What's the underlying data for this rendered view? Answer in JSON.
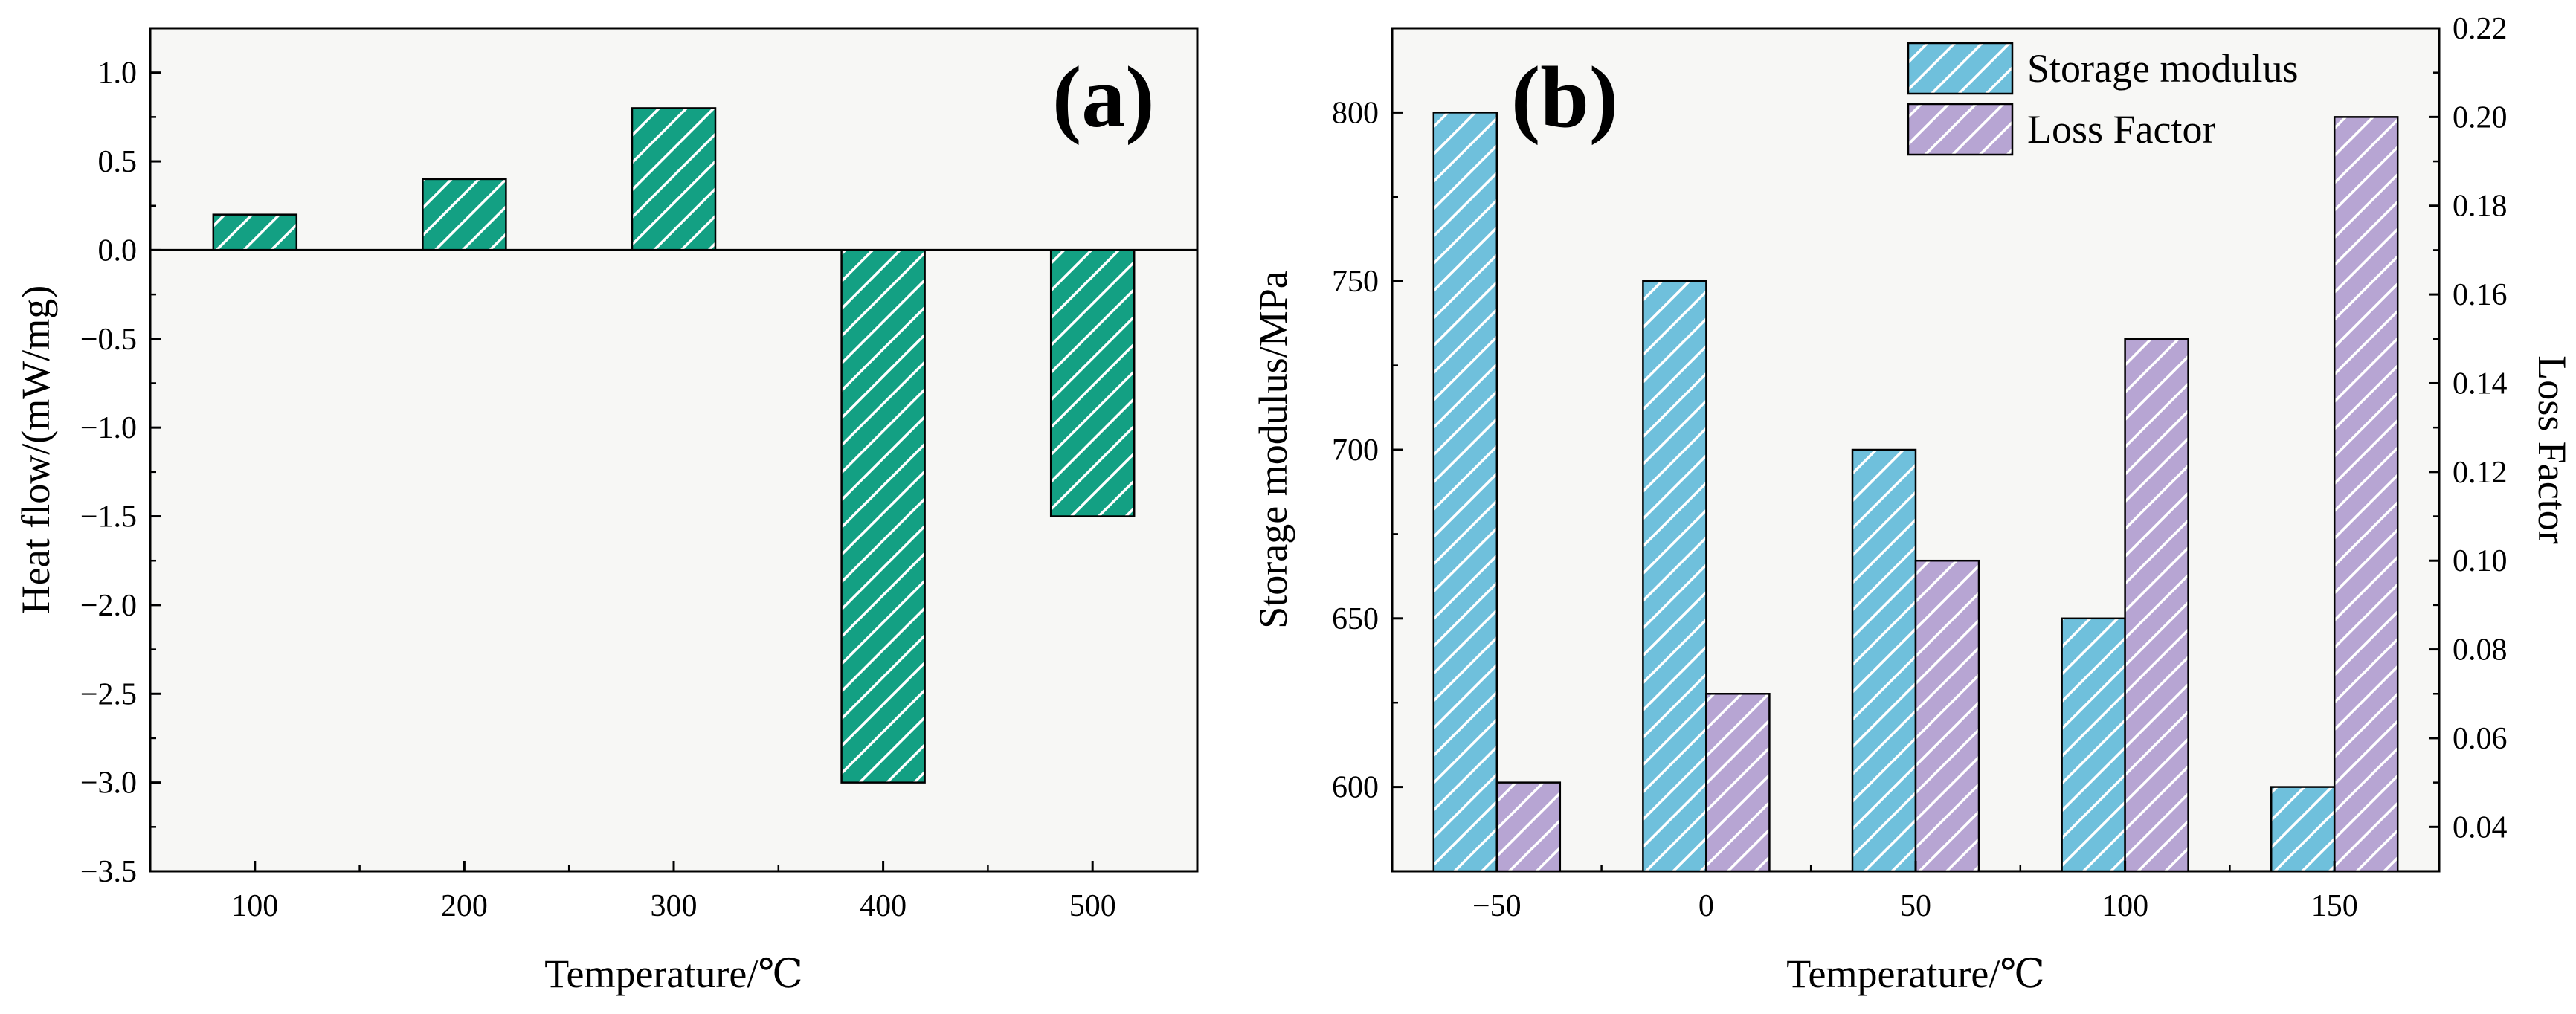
{
  "chart_data": [
    {
      "panel": "(a)",
      "type": "bar",
      "xlabel": "Temperature/℃",
      "ylabel": "Heat flow/(mW/mg)",
      "categories": [
        "100",
        "200",
        "300",
        "400",
        "500"
      ],
      "values": [
        0.2,
        0.4,
        0.8,
        -3.0,
        -1.5
      ],
      "ylim": [
        -3.5,
        1.25
      ],
      "yticks": [
        1.0,
        0.5,
        0.0,
        -0.5,
        -1.0,
        -1.5,
        -2.0,
        -2.5,
        -3.0,
        -3.5
      ],
      "ytick_labels": [
        "1.0",
        "0.5",
        "0.0",
        "−0.5",
        "−1.0",
        "−1.5",
        "−2.0",
        "−2.5",
        "−3.0",
        "−3.5"
      ],
      "baseline": 0,
      "colors": {
        "bar": "#13a083",
        "hatch": "#ffffff",
        "background": "#f7f7f5"
      }
    },
    {
      "panel": "(b)",
      "type": "bar",
      "xlabel": "Temperature/℃",
      "ylabel": "Storage modulus/MPa",
      "y2label": "Loss Factor",
      "categories": [
        "−50",
        "0",
        "50",
        "100",
        "150"
      ],
      "ylim": [
        575,
        825
      ],
      "y2lim": [
        0.03,
        0.22
      ],
      "yticks": [
        600,
        650,
        700,
        750,
        800
      ],
      "y2ticks": [
        0.04,
        0.06,
        0.08,
        0.1,
        0.12,
        0.14,
        0.16,
        0.18,
        0.2,
        0.22
      ],
      "y2tick_labels": [
        "0.04",
        "0.06",
        "0.08",
        "0.10",
        "0.12",
        "0.14",
        "0.16",
        "0.18",
        "0.20",
        "0.22"
      ],
      "series": [
        {
          "name": "Storage modulus",
          "axis": "left",
          "values": [
            800,
            750,
            700,
            650,
            600
          ],
          "color": "#6fc0dc"
        },
        {
          "name": "Loss Factor",
          "axis": "right",
          "values": [
            0.05,
            0.07,
            0.1,
            0.15,
            0.2
          ],
          "color": "#b7a5d3"
        }
      ],
      "legend_position": "top-right",
      "colors": {
        "background": "#f7f7f5"
      }
    }
  ]
}
